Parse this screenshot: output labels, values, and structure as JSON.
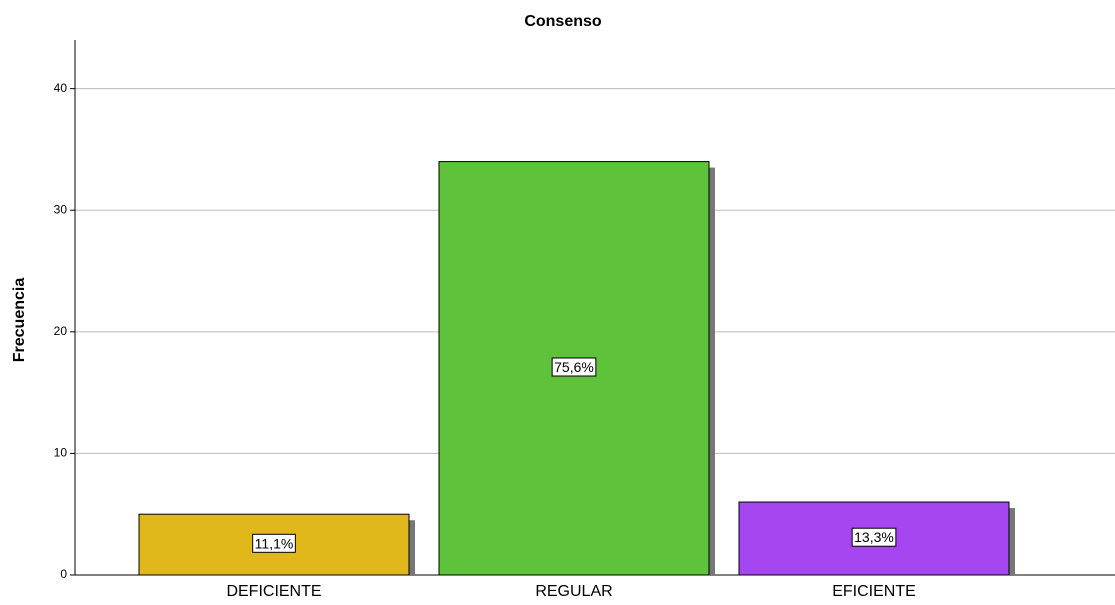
{
  "chart_data": {
    "type": "bar",
    "title": "Consenso",
    "y_label": "Frecuencia",
    "categories": [
      "DEFICIENTE",
      "REGULAR",
      "EFICIENTE"
    ],
    "values": [
      5,
      34,
      6
    ],
    "percent_labels": [
      "11,1%",
      "75,6%",
      "13,3%"
    ],
    "colors": [
      "#e0b81c",
      "#5ec23a",
      "#a646f0"
    ],
    "ylim": [
      0,
      44
    ],
    "yticks": [
      0,
      10,
      20,
      30,
      40
    ],
    "grid": true
  }
}
